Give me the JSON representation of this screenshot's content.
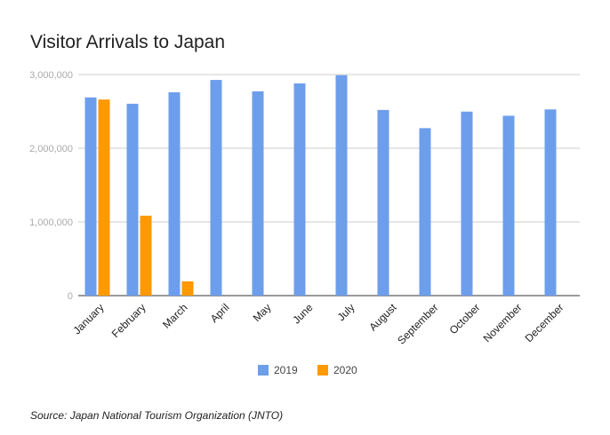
{
  "chart_data": {
    "type": "bar",
    "title": "Visitor Arrivals to Japan",
    "xlabel": "",
    "ylabel": "",
    "categories": [
      "January",
      "February",
      "March",
      "April",
      "May",
      "June",
      "July",
      "August",
      "September",
      "October",
      "November",
      "December"
    ],
    "series": [
      {
        "name": "2019",
        "color": "#6d9eeb",
        "values": [
          2690000,
          2604000,
          2760000,
          2927000,
          2773000,
          2880000,
          2991000,
          2520000,
          2273000,
          2497000,
          2441000,
          2527000
        ]
      },
      {
        "name": "2020",
        "color": "#ff9900",
        "values": [
          2661000,
          1085000,
          194000,
          null,
          null,
          null,
          null,
          null,
          null,
          null,
          null,
          null
        ]
      }
    ],
    "ylim": [
      0,
      3000000
    ],
    "yticks": [
      0,
      1000000,
      2000000,
      3000000
    ],
    "ytick_labels": [
      "0",
      "1,000,000",
      "2,000,000",
      "3,000,000"
    ],
    "grid": true,
    "legend_position": "bottom"
  },
  "source": "Source: Japan National Tourism Organization (JNTO)"
}
